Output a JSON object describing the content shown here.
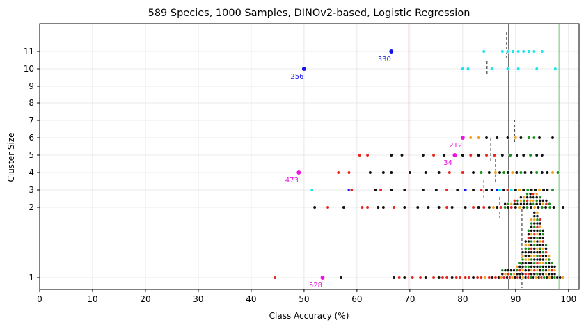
{
  "chart_data": {
    "type": "scatter",
    "title": "589 Species, 1000 Samples, DINOv2-based, Logistic Regression",
    "xlabel": "Class Accuracy (%)",
    "ylabel": "Cluster Size",
    "xlim": [
      0,
      102
    ],
    "x_ticks": [
      0,
      10,
      20,
      30,
      40,
      50,
      60,
      70,
      80,
      90,
      100
    ],
    "y_ticks": [
      1,
      2,
      3,
      4,
      5,
      6,
      7,
      8,
      9,
      10,
      11
    ],
    "grid": true,
    "colors": {
      "black": "#111111",
      "red": "#e8251f",
      "orange": "#f5a21b",
      "green": "#17911c",
      "cyan": "#14e6ee",
      "blue": "#1515e8",
      "magenta": "#ee14e0",
      "mean_line": "#444444",
      "red_line": "#f07070",
      "green_line": "#70c070"
    },
    "reference_lines": [
      {
        "x": 69.8,
        "color": "red"
      },
      {
        "x": 79.3,
        "color": "green"
      },
      {
        "x": 88.7,
        "color": "black"
      },
      {
        "x": 98.2,
        "color": "green"
      }
    ],
    "cluster_means": [
      {
        "size": 1,
        "x": 91.2
      },
      {
        "size": 2,
        "x": 87.0
      },
      {
        "size": 3,
        "x": 84.0
      },
      {
        "size": 4,
        "x": 86.2
      },
      {
        "size": 5,
        "x": 85.3
      },
      {
        "size": 6,
        "x": 89.8
      },
      {
        "size": 10,
        "x": 84.6
      },
      {
        "size": 11,
        "x": 88.3
      }
    ],
    "highlighted_points": [
      {
        "label": "528",
        "x": 53.5,
        "y": 1,
        "color": "magenta"
      },
      {
        "label": "473",
        "x": 49.0,
        "y": 4,
        "color": "magenta"
      },
      {
        "label": "34",
        "x": 78.5,
        "y": 5,
        "color": "magenta"
      },
      {
        "label": "212",
        "x": 80.0,
        "y": 6,
        "color": "magenta"
      },
      {
        "label": "256",
        "x": 50.0,
        "y": 10,
        "color": "blue"
      },
      {
        "label": "330",
        "x": 66.5,
        "y": 11,
        "color": "blue"
      }
    ],
    "series": [
      {
        "cluster_size": 1,
        "points": [
          [
            44.5,
            "red"
          ],
          [
            57.0,
            "black"
          ],
          [
            67.0,
            "black"
          ],
          [
            68.0,
            "red"
          ],
          [
            69.0,
            "black"
          ],
          [
            70.5,
            "red"
          ],
          [
            72.0,
            "red"
          ],
          [
            73.0,
            "black"
          ],
          [
            74.5,
            "red"
          ],
          [
            75.5,
            "black"
          ],
          [
            76.2,
            "red"
          ],
          [
            77.0,
            "red"
          ],
          [
            78.0,
            "black"
          ],
          [
            78.8,
            "red"
          ],
          [
            79.5,
            "red"
          ],
          [
            80.5,
            "red"
          ],
          [
            81.2,
            "red"
          ],
          [
            82.0,
            "black"
          ],
          [
            82.8,
            "red"
          ],
          [
            83.5,
            "red"
          ],
          [
            84.2,
            "orange"
          ],
          [
            85.0,
            "red"
          ],
          [
            85.6,
            "black"
          ],
          [
            86.2,
            "red"
          ],
          [
            86.8,
            "black"
          ],
          [
            87.3,
            "orange"
          ],
          [
            87.8,
            "red"
          ],
          [
            88.4,
            "black"
          ],
          [
            88.9,
            "red"
          ],
          [
            89.4,
            "orange"
          ],
          [
            89.9,
            "black"
          ],
          [
            90.4,
            "red"
          ],
          [
            90.9,
            "black"
          ],
          [
            91.4,
            "orange"
          ],
          [
            91.9,
            "black"
          ],
          [
            92.4,
            "red"
          ],
          [
            92.9,
            "green"
          ],
          [
            93.4,
            "black"
          ],
          [
            93.9,
            "orange"
          ],
          [
            94.4,
            "black"
          ],
          [
            94.9,
            "red"
          ],
          [
            95.4,
            "green"
          ],
          [
            95.9,
            "black"
          ],
          [
            96.4,
            "orange"
          ],
          [
            96.9,
            "black"
          ],
          [
            97.4,
            "green"
          ],
          [
            97.9,
            "black"
          ],
          [
            98.4,
            "black"
          ],
          [
            99.0,
            "orange"
          ]
        ]
      },
      {
        "cluster_size": 2,
        "points": [
          [
            52.0,
            "black"
          ],
          [
            54.5,
            "red"
          ],
          [
            57.5,
            "black"
          ],
          [
            61.0,
            "red"
          ],
          [
            62.0,
            "red"
          ],
          [
            64.0,
            "black"
          ],
          [
            65.0,
            "black"
          ],
          [
            67.0,
            "red"
          ],
          [
            69.0,
            "black"
          ],
          [
            71.5,
            "black"
          ],
          [
            73.5,
            "black"
          ],
          [
            75.5,
            "black"
          ],
          [
            77.0,
            "red"
          ],
          [
            78.0,
            "black"
          ],
          [
            80.5,
            "black"
          ],
          [
            82.0,
            "red"
          ],
          [
            83.0,
            "black"
          ],
          [
            84.0,
            "red"
          ],
          [
            85.0,
            "black"
          ],
          [
            85.8,
            "orange"
          ],
          [
            86.5,
            "black"
          ],
          [
            87.2,
            "red"
          ],
          [
            88.0,
            "green"
          ],
          [
            88.6,
            "black"
          ],
          [
            89.2,
            "red"
          ],
          [
            90.0,
            "black"
          ],
          [
            90.8,
            "orange"
          ],
          [
            91.5,
            "black"
          ],
          [
            92.2,
            "green"
          ],
          [
            92.9,
            "black"
          ],
          [
            93.6,
            "orange"
          ],
          [
            94.3,
            "black"
          ],
          [
            95.0,
            "green"
          ],
          [
            95.7,
            "black"
          ],
          [
            96.5,
            "green"
          ],
          [
            97.2,
            "black"
          ],
          [
            99.0,
            "black"
          ]
        ]
      },
      {
        "cluster_size": 3,
        "points": [
          [
            51.5,
            "cyan"
          ],
          [
            58.5,
            "blue"
          ],
          [
            59.0,
            "red"
          ],
          [
            63.5,
            "black"
          ],
          [
            64.5,
            "red"
          ],
          [
            66.5,
            "black"
          ],
          [
            69.0,
            "black"
          ],
          [
            72.5,
            "black"
          ],
          [
            75.0,
            "black"
          ],
          [
            77.0,
            "red"
          ],
          [
            79.0,
            "black"
          ],
          [
            80.5,
            "blue"
          ],
          [
            82.0,
            "black"
          ],
          [
            83.5,
            "red"
          ],
          [
            84.5,
            "black"
          ],
          [
            85.5,
            "black"
          ],
          [
            86.5,
            "blue"
          ],
          [
            87.0,
            "cyan"
          ],
          [
            87.8,
            "black"
          ],
          [
            88.5,
            "red"
          ],
          [
            89.2,
            "cyan"
          ],
          [
            90.0,
            "black"
          ],
          [
            90.8,
            "orange"
          ],
          [
            91.5,
            "black"
          ],
          [
            92.3,
            "green"
          ],
          [
            93.0,
            "black"
          ],
          [
            93.8,
            "black"
          ],
          [
            94.5,
            "orange"
          ],
          [
            95.3,
            "black"
          ],
          [
            96.0,
            "black"
          ],
          [
            97.0,
            "green"
          ]
        ]
      },
      {
        "cluster_size": 4,
        "points": [
          [
            56.5,
            "red"
          ],
          [
            58.5,
            "red"
          ],
          [
            62.5,
            "black"
          ],
          [
            65.0,
            "black"
          ],
          [
            66.5,
            "black"
          ],
          [
            70.0,
            "black"
          ],
          [
            73.0,
            "black"
          ],
          [
            75.5,
            "black"
          ],
          [
            77.5,
            "red"
          ],
          [
            80.0,
            "red"
          ],
          [
            82.0,
            "black"
          ],
          [
            83.5,
            "green"
          ],
          [
            85.0,
            "black"
          ],
          [
            86.2,
            "orange"
          ],
          [
            87.0,
            "black"
          ],
          [
            87.8,
            "green"
          ],
          [
            88.6,
            "black"
          ],
          [
            89.4,
            "orange"
          ],
          [
            90.2,
            "black"
          ],
          [
            91.0,
            "green"
          ],
          [
            91.8,
            "black"
          ],
          [
            93.0,
            "black"
          ],
          [
            94.0,
            "green"
          ],
          [
            95.0,
            "black"
          ],
          [
            96.0,
            "black"
          ],
          [
            97.0,
            "orange"
          ],
          [
            98.0,
            "green"
          ]
        ]
      },
      {
        "cluster_size": 5,
        "points": [
          [
            60.5,
            "red"
          ],
          [
            62.0,
            "red"
          ],
          [
            66.5,
            "black"
          ],
          [
            68.5,
            "black"
          ],
          [
            72.5,
            "black"
          ],
          [
            74.5,
            "red"
          ],
          [
            76.5,
            "black"
          ],
          [
            80.0,
            "black"
          ],
          [
            81.5,
            "red"
          ],
          [
            83.0,
            "black"
          ],
          [
            84.5,
            "red"
          ],
          [
            86.0,
            "red"
          ],
          [
            87.5,
            "black"
          ],
          [
            89.0,
            "green"
          ],
          [
            90.3,
            "black"
          ],
          [
            91.5,
            "black"
          ],
          [
            92.8,
            "green"
          ],
          [
            94.0,
            "black"
          ],
          [
            95.0,
            "black"
          ]
        ]
      },
      {
        "cluster_size": 6,
        "points": [
          [
            81.5,
            "orange"
          ],
          [
            83.0,
            "orange"
          ],
          [
            84.5,
            "black"
          ],
          [
            86.5,
            "black"
          ],
          [
            88.5,
            "black"
          ],
          [
            90.0,
            "orange"
          ],
          [
            91.0,
            "black"
          ],
          [
            92.5,
            "green"
          ],
          [
            93.5,
            "green"
          ],
          [
            94.5,
            "black"
          ],
          [
            97.0,
            "black"
          ]
        ]
      },
      {
        "cluster_size": 10,
        "points": [
          [
            80.0,
            "cyan"
          ],
          [
            81.0,
            "cyan"
          ],
          [
            85.5,
            "cyan"
          ],
          [
            88.5,
            "cyan"
          ],
          [
            90.5,
            "cyan"
          ],
          [
            94.0,
            "cyan"
          ],
          [
            97.5,
            "cyan"
          ]
        ]
      },
      {
        "cluster_size": 11,
        "points": [
          [
            84.0,
            "cyan"
          ],
          [
            87.5,
            "cyan"
          ],
          [
            88.5,
            "cyan"
          ],
          [
            89.5,
            "cyan"
          ],
          [
            90.5,
            "cyan"
          ],
          [
            91.5,
            "cyan"
          ],
          [
            92.5,
            "cyan"
          ],
          [
            93.5,
            "cyan"
          ],
          [
            95.0,
            "cyan"
          ]
        ]
      }
    ]
  }
}
